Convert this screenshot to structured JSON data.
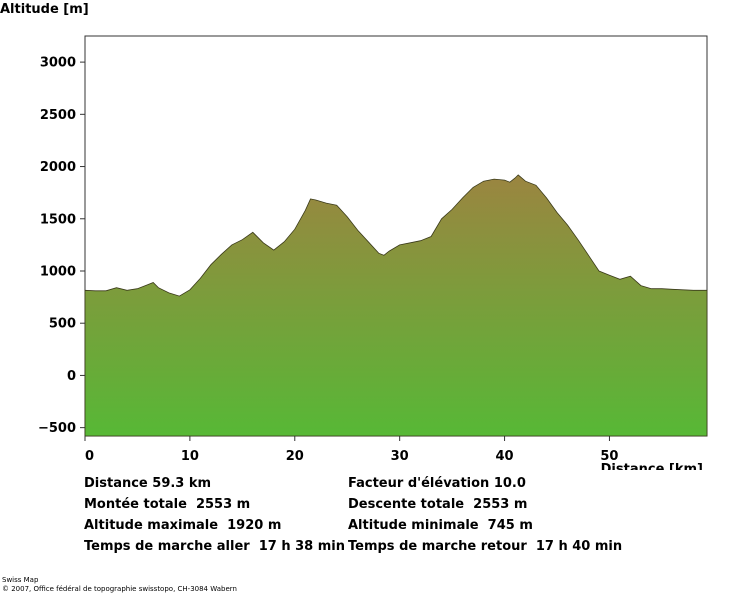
{
  "chart_data": {
    "type": "area",
    "ylabel": "Altitude [m]",
    "xlabel": "Distance [km]",
    "xlim": [
      0,
      59.3
    ],
    "ylim": [
      -580,
      3250
    ],
    "xticks": [
      0,
      10,
      20,
      30,
      40,
      50
    ],
    "yticks": [
      -500,
      0,
      500,
      1000,
      1500,
      2000,
      2500,
      3000
    ],
    "grid": false,
    "colors": {
      "top": "#9b8540",
      "bottom": "#57b836"
    },
    "x": [
      0,
      1,
      2,
      3,
      4,
      5,
      6,
      6.5,
      7,
      8,
      8.5,
      9,
      10,
      11,
      12,
      13,
      14,
      15,
      16,
      17,
      18,
      19,
      20,
      21,
      21.5,
      22,
      23,
      24,
      25,
      26,
      27,
      28,
      28.5,
      29,
      30,
      31,
      32,
      33,
      34,
      35,
      36,
      37,
      38,
      39,
      40,
      40.5,
      41,
      41.3,
      42,
      43,
      44,
      45,
      46,
      47,
      48,
      49,
      50,
      51,
      52,
      53,
      54,
      55,
      56,
      57,
      58,
      59.3
    ],
    "y": [
      815,
      810,
      810,
      840,
      815,
      830,
      870,
      890,
      840,
      790,
      775,
      760,
      820,
      930,
      1060,
      1160,
      1250,
      1300,
      1370,
      1270,
      1200,
      1280,
      1400,
      1580,
      1690,
      1680,
      1650,
      1630,
      1520,
      1390,
      1280,
      1170,
      1150,
      1190,
      1250,
      1270,
      1290,
      1330,
      1500,
      1590,
      1700,
      1800,
      1860,
      1880,
      1870,
      1850,
      1890,
      1920,
      1860,
      1820,
      1700,
      1560,
      1440,
      1300,
      1150,
      1000,
      960,
      920,
      950,
      860,
      830,
      830,
      825,
      820,
      815,
      815
    ]
  },
  "stats": [
    {
      "label": "Distance",
      "value": "59.3 km"
    },
    {
      "label": "Facteur d'élévation",
      "value": "10.0"
    },
    {
      "label": "Montée totale",
      "value": "2553 m"
    },
    {
      "label": "Descente totale",
      "value": "2553 m"
    },
    {
      "label": "Altitude maximale",
      "value": "1920 m"
    },
    {
      "label": "Altitude minimale",
      "value": "745 m"
    },
    {
      "label": "Temps de marche aller",
      "value": "17 h 38 min"
    },
    {
      "label": "Temps de marche retour",
      "value": "17 h 40 min"
    }
  ],
  "footer": {
    "line1": "Swiss Map",
    "line2": "© 2007, Office fédéral de topographie swisstopo, CH-3084 Wabern"
  }
}
